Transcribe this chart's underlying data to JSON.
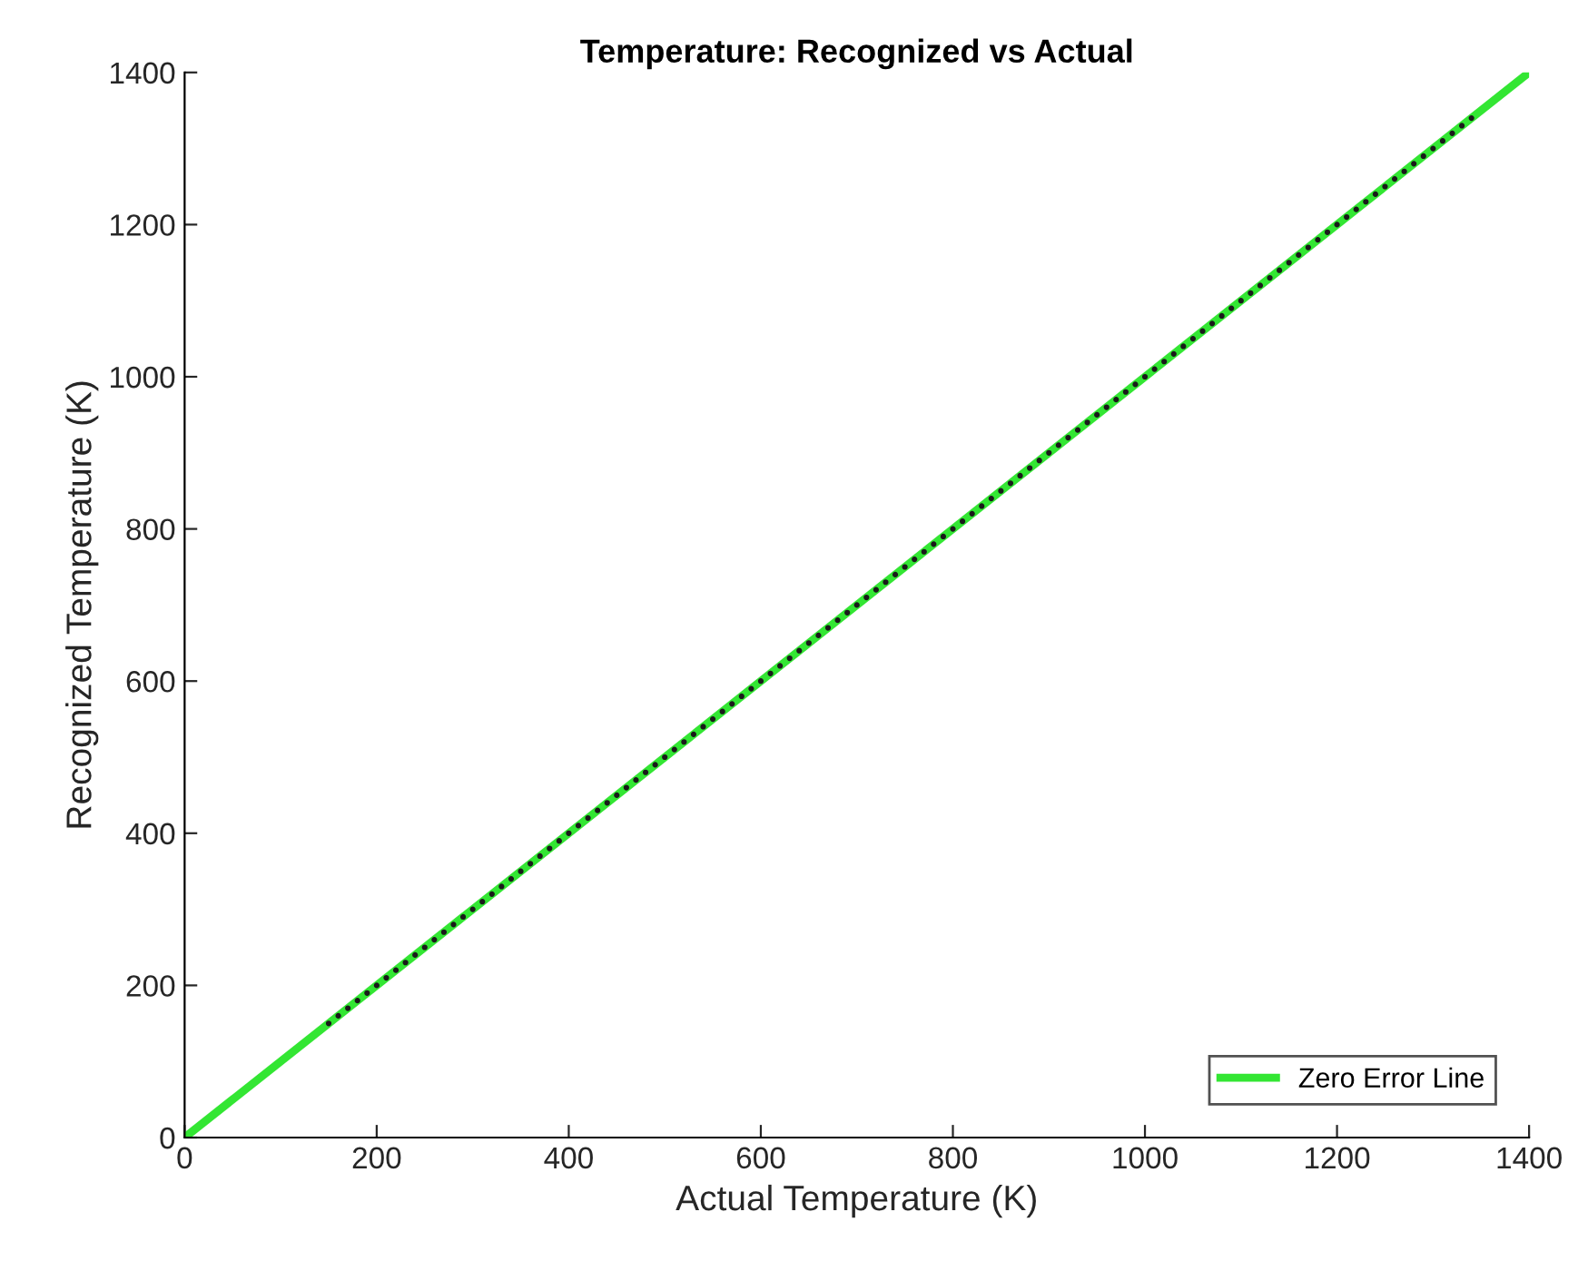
{
  "chart_data": {
    "type": "scatter",
    "title": "Temperature: Recognized vs Actual",
    "xlabel": "Actual Temperature (K)",
    "ylabel": "Recognized Temperature (K)",
    "xlim": [
      0,
      1400
    ],
    "ylim": [
      0,
      1400
    ],
    "xticks": [
      0,
      200,
      400,
      600,
      800,
      1000,
      1200,
      1400
    ],
    "yticks": [
      0,
      200,
      400,
      600,
      800,
      1000,
      1200,
      1400
    ],
    "grid": false,
    "legend": "bottom right",
    "series": [
      {
        "name": "Zero Error Line",
        "type": "line",
        "color": "#33e633",
        "x": [
          0,
          1400
        ],
        "values": [
          0,
          1400
        ],
        "marker": "none",
        "line_style": "solid"
      },
      {
        "color": "#1a1a1a",
        "marker": "circle",
        "x": [
          150,
          160,
          170,
          180,
          190,
          200,
          210,
          220,
          230,
          240,
          250,
          260,
          270,
          280,
          290,
          300,
          310,
          320,
          330,
          340,
          350,
          360,
          370,
          380,
          390,
          400,
          410,
          420,
          430,
          440,
          450,
          460,
          470,
          480,
          490,
          500,
          510,
          520,
          530,
          540,
          550,
          560,
          570,
          580,
          590,
          600,
          610,
          620,
          630,
          640,
          650,
          660,
          670,
          680,
          690,
          700,
          710,
          720,
          730,
          740,
          750,
          760,
          770,
          780,
          790,
          800,
          810,
          820,
          830,
          840,
          850,
          860,
          870,
          880,
          890,
          900,
          910,
          920,
          930,
          940,
          950,
          960,
          970,
          980,
          990,
          1000,
          1010,
          1020,
          1030,
          1040,
          1050,
          1060,
          1070,
          1080,
          1090,
          1100,
          1110,
          1120,
          1130,
          1140,
          1150,
          1160,
          1170,
          1180,
          1190,
          1200,
          1210,
          1220,
          1230,
          1240,
          1250,
          1260,
          1270,
          1280,
          1290,
          1300,
          1310,
          1320,
          1330,
          1340
        ],
        "values": [
          150,
          160,
          170,
          180,
          190,
          200,
          210,
          220,
          230,
          240,
          250,
          260,
          270,
          280,
          290,
          300,
          310,
          320,
          330,
          340,
          350,
          360,
          370,
          380,
          390,
          400,
          410,
          420,
          430,
          440,
          450,
          460,
          470,
          480,
          490,
          500,
          510,
          520,
          530,
          540,
          550,
          560,
          570,
          580,
          590,
          600,
          610,
          620,
          630,
          640,
          650,
          660,
          670,
          680,
          690,
          700,
          710,
          720,
          730,
          740,
          750,
          760,
          770,
          780,
          790,
          800,
          810,
          820,
          830,
          840,
          850,
          860,
          870,
          880,
          890,
          900,
          910,
          920,
          930,
          940,
          950,
          960,
          970,
          980,
          990,
          1000,
          1010,
          1020,
          1030,
          1040,
          1050,
          1060,
          1070,
          1080,
          1090,
          1100,
          1110,
          1120,
          1130,
          1140,
          1150,
          1160,
          1170,
          1180,
          1190,
          1200,
          1210,
          1220,
          1230,
          1240,
          1250,
          1260,
          1270,
          1280,
          1290,
          1300,
          1310,
          1320,
          1330,
          1340
        ]
      }
    ]
  }
}
